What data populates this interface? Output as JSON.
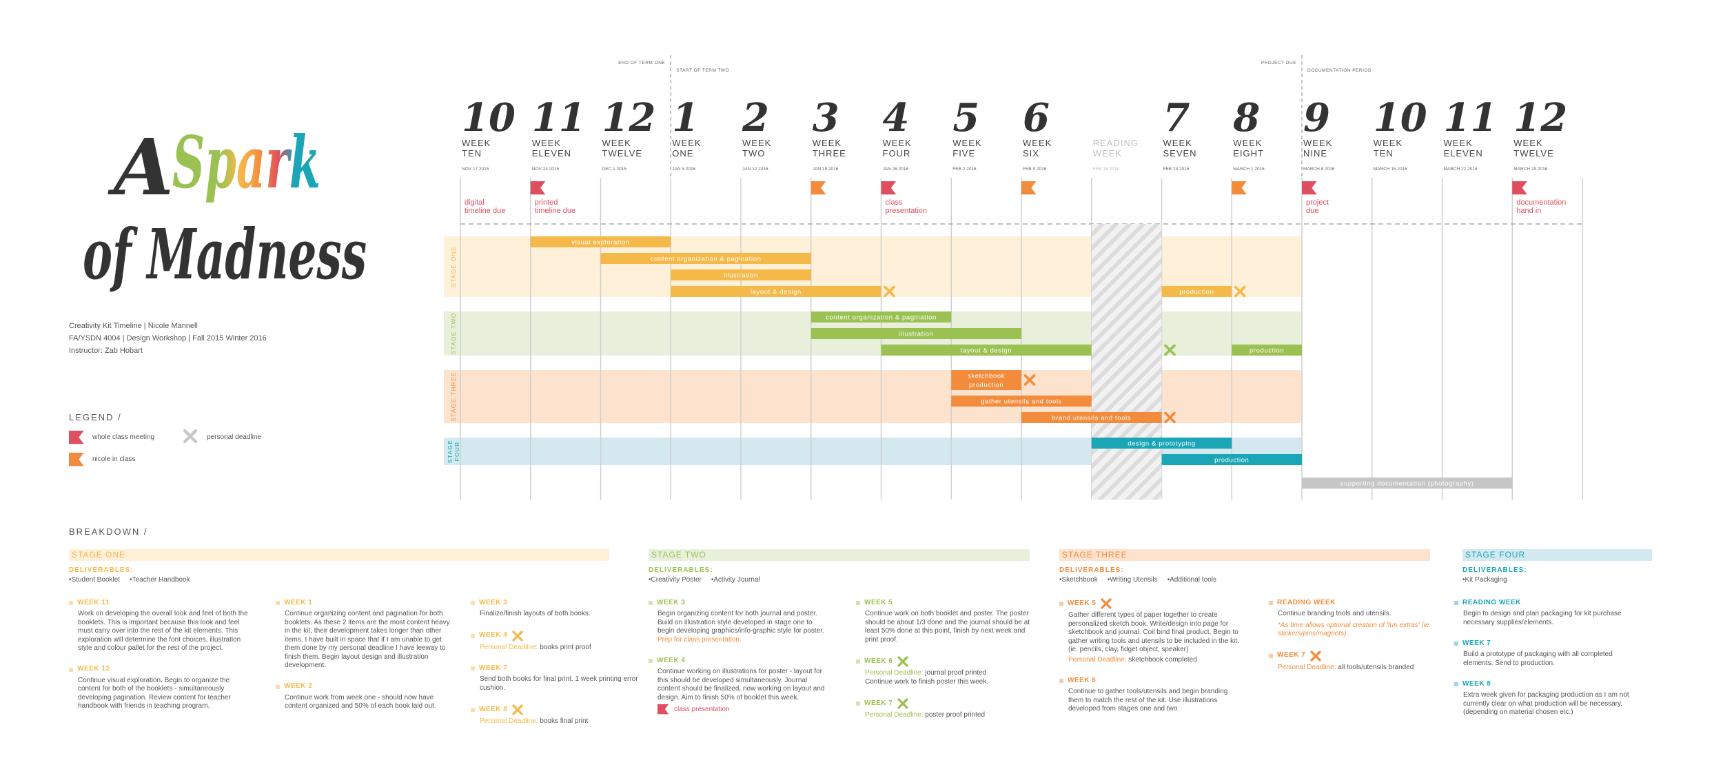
{
  "title": {
    "first": "A",
    "accent": "Spark",
    "second": "of Madness"
  },
  "info": [
    "Creativity Kit Timeline  |  Nicole Mannell",
    "FA/YSDN 4004  |  Design Workshop  |  Fall 2015 Winter 2016",
    "Instructor: Zab Hobart"
  ],
  "legend": {
    "title": "LEGEND /",
    "items": [
      {
        "icon": "red",
        "label": "whole class meeting"
      },
      {
        "icon": "personal",
        "label": "personal deadline"
      },
      {
        "icon": "orange",
        "label": "nicole in class"
      }
    ]
  },
  "flag_colors": {
    "red": "#e04f5f",
    "orange": "#f28c3c"
  },
  "timeline": {
    "dividers": [
      {
        "week": 3,
        "before": "END OF TERM ONE",
        "after": "START OF TERM TWO"
      },
      {
        "week": 12,
        "before": "PROJECT DUE",
        "after": "DOCUMENTATION PERIOD"
      }
    ],
    "weeks": [
      {
        "number": "10",
        "lines": [
          "WEEK",
          "TEN"
        ],
        "date": "NOV 17 2015"
      },
      {
        "number": "11",
        "lines": [
          "WEEK",
          "ELEVEN"
        ],
        "date": "NOV 24 2015"
      },
      {
        "number": "12",
        "lines": [
          "WEEK",
          "TWELVE"
        ],
        "date": "DEC 1 2015"
      },
      {
        "number": "1",
        "lines": [
          "WEEK",
          "ONE"
        ],
        "date": "JAN 5 2016"
      },
      {
        "number": "2",
        "lines": [
          "WEEK",
          "TWO"
        ],
        "date": "JAN 12 2016"
      },
      {
        "number": "3",
        "lines": [
          "WEEK",
          "THREE"
        ],
        "date": "JAN 19 2016"
      },
      {
        "number": "4",
        "lines": [
          "WEEK",
          "FOUR"
        ],
        "date": "JAN 26 2016"
      },
      {
        "number": "5",
        "lines": [
          "WEEK",
          "FIVE"
        ],
        "date": "FEB 2 2016"
      },
      {
        "number": "6",
        "lines": [
          "WEEK",
          "SIX"
        ],
        "date": "FEB 9 2016"
      },
      {
        "lines": [
          "READING",
          "WEEK"
        ],
        "date": "FEB 16 2016",
        "muted": true
      },
      {
        "number": "7",
        "lines": [
          "WEEK",
          "SEVEN"
        ],
        "date": "FEB 23 2016"
      },
      {
        "number": "8",
        "lines": [
          "WEEK",
          "EIGHT"
        ],
        "date": "MARCH 1 2016"
      },
      {
        "number": "9",
        "lines": [
          "WEEK",
          "NINE"
        ],
        "date": "MARCH 8 2016"
      },
      {
        "number": "10",
        "lines": [
          "WEEK",
          "TEN"
        ],
        "date": "MARCH 15 2016"
      },
      {
        "number": "11",
        "lines": [
          "WEEK",
          "ELEVEN"
        ],
        "date": "MARCH 22 2016"
      },
      {
        "number": "12",
        "lines": [
          "WEEK",
          "TWELVE"
        ],
        "date": "MARCH 29 2016"
      }
    ],
    "milestones": [
      {
        "week": 0,
        "text": [
          "digital",
          "timeline due"
        ]
      },
      {
        "week": 1,
        "flag": "red",
        "text": [
          "printed",
          "timeline due"
        ]
      },
      {
        "week": 5,
        "flag": "orange"
      },
      {
        "week": 6,
        "flag": "red",
        "text": [
          "class",
          "presentation"
        ]
      },
      {
        "week": 8,
        "flag": "orange"
      },
      {
        "week": 11,
        "flag": "orange"
      },
      {
        "week": 12,
        "flag": "red",
        "text": [
          "project",
          "due"
        ]
      },
      {
        "week": 15,
        "flag": "red",
        "text": [
          "documentation",
          "hand in"
        ]
      }
    ],
    "stages": [
      {
        "label": [
          "STAGE ONE"
        ],
        "color": "#f5b94a",
        "band": "#fef0d9",
        "rows": [
          [
            {
              "label": [
                "visual exploration"
              ],
              "from_week": 1,
              "to_week": 3
            }
          ],
          [
            {
              "label": [
                "content organization & pagination"
              ],
              "from_week": 2,
              "to_week": 5
            }
          ],
          [
            {
              "label": [
                "illustration"
              ],
              "from_week": 3,
              "to_week": 5
            }
          ],
          [
            {
              "label": [
                "layout & design"
              ],
              "from_week": 3,
              "to_week": 6,
              "deadlines": [
                6
              ]
            },
            {
              "label": [
                "production"
              ],
              "from_week": 10,
              "to_week": 11,
              "deadlines": [
                11
              ]
            }
          ]
        ]
      },
      {
        "label": [
          "STAGE TWO"
        ],
        "color": "#9bc152",
        "band": "#e8f0dc",
        "rows": [
          [
            {
              "label": [
                "content organization & pagination"
              ],
              "from_week": 5,
              "to_week": 7
            }
          ],
          [
            {
              "label": [
                "illustration"
              ],
              "from_week": 5,
              "to_week": 8
            }
          ],
          [
            {
              "label": [
                "layout & design"
              ],
              "from_week": 6,
              "to_week": 9,
              "deadlines": [
                8,
                10
              ]
            },
            {
              "label": [
                "production"
              ],
              "from_week": 11,
              "to_week": 12
            }
          ]
        ]
      },
      {
        "label": [
          "STAGE THREE"
        ],
        "color": "#f28c3c",
        "band": "#fde2cd",
        "rows": [
          [
            {
              "label": [
                "sketchbook",
                "production"
              ],
              "from_week": 7,
              "to_week": 8,
              "deadlines": [
                8
              ]
            }
          ],
          [
            {
              "label": [
                "gather utensils and tools"
              ],
              "from_week": 7,
              "to_week": 9
            }
          ],
          [
            {
              "label": [
                "brand utensils and tools"
              ],
              "from_week": 8,
              "to_week": 10,
              "deadlines": [
                10
              ]
            }
          ]
        ]
      },
      {
        "label": [
          "STAGE",
          "FOUR"
        ],
        "color": "#1aa6b7",
        "band": "#d3e9ef",
        "rows": [
          [
            {
              "label": [
                "design & prototyping"
              ],
              "from_week": 9,
              "to_week": 11
            }
          ],
          [
            {
              "label": [
                "production"
              ],
              "from_week": 10,
              "to_week": 12
            }
          ]
        ]
      }
    ],
    "documentation_task": {
      "label": [
        "supporting documentation (photography)"
      ],
      "from_week": 12,
      "to_week": 15,
      "color": "#c6c6c6"
    }
  },
  "breakdown": {
    "title": "BREAKDOWN /",
    "stages": [
      {
        "name": "STAGE ONE",
        "deliverables_label": "DELIVERABLES:",
        "deliverables": [
          "Student Booklet",
          "Teacher Handbook"
        ],
        "columns": [
          [
            {
              "heading": "WEEK 11",
              "body": "Work on developing the overall look and feel of both the booklets. This is important because this look and feel must carry over into the rest of the kit elements. This exploration will determine the font choices, illustration style and colour pallet for the rest of the project."
            },
            {
              "heading": "WEEK 12",
              "body": "Continue visual exploration. Begin to organize the content for both of the booklets - simultaneously developing pagination. Review content for teacher handbook with friends in teaching program."
            }
          ],
          [
            {
              "heading": "WEEK 1",
              "body": "Continue organizing content and pagination for both booklets. As these 2 items are the most content heavy in the kit, their development takes longer than other items. I have built in space that if I am unable to get them done by my personal deadline I have leeway to finish them. Begin layout design and illustration development."
            },
            {
              "heading": "WEEK 2",
              "body": "Continue work from week one - should now have content organized and 50% of each book laid out."
            }
          ],
          [
            {
              "heading": "WEEK 3",
              "body": "Finalize/finish layouts of both books."
            },
            {
              "heading": "WEEK 4",
              "personal": true,
              "deadline_label": "Personal Deadline:",
              "deadline": "books print proof"
            },
            {
              "heading": "WEEK 7",
              "body": "Send both books for final print. 1 week printing error cushion."
            },
            {
              "heading": "WEEK 8",
              "personal": true,
              "deadline_label": "Personal Deadline:",
              "deadline": "books final print"
            }
          ]
        ]
      },
      {
        "name": "STAGE TWO",
        "deliverables_label": "DELIVERABLES:",
        "deliverables": [
          "Creativity Poster",
          "Activity Journal"
        ],
        "columns": [
          [
            {
              "heading": "WEEK 3",
              "body": "Begin organizing content for both journal and poster. Build on illustration style developed in stage one to begin developing graphics/info-graphic style for poster.",
              "accent": "Prep for class presentation.",
              "accent_color": "#f28c3c"
            },
            {
              "heading": "WEEK 4",
              "body": "Continue working on illustrations for poster - layout for this should be developed simultaneously. Journal content should be finalized, now working on layout and design. Aim to finish 50% of booklet this week.",
              "flag": "class presentation"
            }
          ],
          [
            {
              "heading": "WEEK 5",
              "body": "Continue work on both booklet and poster. The poster should be about 1/3 done and the journal should be at least 50% done at this point, finish by next week and print proof."
            },
            {
              "heading": "WEEK 6",
              "personal": true,
              "deadline_label": "Personal Deadline:",
              "deadline": "journal proof printed",
              "body2": "Continue work to finish poster this week."
            },
            {
              "heading": "WEEK 7",
              "personal": true,
              "deadline_label": "Personal Deadline:",
              "deadline": "poster proof printed"
            }
          ]
        ]
      },
      {
        "name": "STAGE THREE",
        "deliverables_label": "DELIVERABLES:",
        "deliverables": [
          "Sketchbook",
          "Writing Utensils",
          "Additional tools"
        ],
        "columns": [
          [
            {
              "heading": "WEEK 5",
              "personal": true,
              "body": "Gather different types of paper together to create personalized sketch book. Write/design into page for sketchbook and journal. Coil bind final product. Begin to gather writing tools and utensils to be included in the kit. (ie. pencils, clay, fidget object, speaker)",
              "deadline_label": "Personal Deadline:",
              "deadline": "sketchbook completed"
            },
            {
              "heading": "WEEK 6",
              "body": "Continue to gather tools/utensils and begin branding them to match the rest of the kit. Use illustrations developed from stages one and two."
            }
          ],
          [
            {
              "heading": "READING WEEK",
              "body": "Continue branding tools and utensils.",
              "note": "*As time allows optional creation of 'fun extras' (ie. stickers/pins/magnets).",
              "accent_color": "#f28c3c"
            },
            {
              "heading": "WEEK 7",
              "personal": true,
              "deadline_label": "Personal Deadline:",
              "deadline": "all tools/utensils branded"
            }
          ]
        ]
      },
      {
        "name": "STAGE FOUR",
        "deliverables_label": "DELIVERABLES:",
        "deliverables": [
          "Kit Packaging"
        ],
        "columns": [
          [
            {
              "heading": "READING WEEK",
              "body": "Begin to design and plan packaging for kit purchase necessary supplies/elements."
            },
            {
              "heading": "WEEK 7",
              "body": "Build a prototype of packaging with all completed elements. Send to production."
            },
            {
              "heading": "WEEK 8",
              "body": "Extra week given for packaging production as I am not currently clear on what production will be necessary, (depending on material chosen etc.)"
            }
          ]
        ]
      }
    ]
  }
}
